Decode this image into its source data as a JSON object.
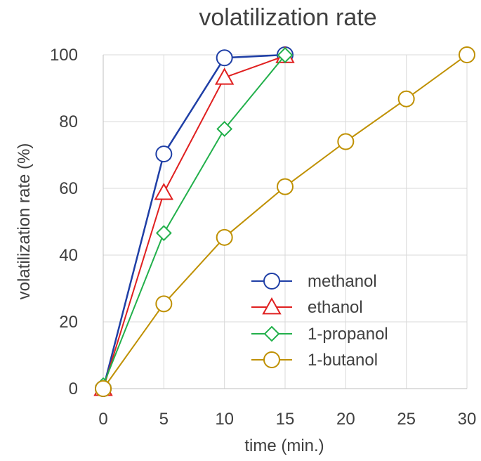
{
  "chart_data": {
    "type": "line",
    "title": "volatilization rate",
    "xlabel": "time (min.)",
    "ylabel": "volatilization rate (%)",
    "xlim": [
      0,
      30
    ],
    "ylim": [
      0,
      100
    ],
    "xticks": [
      0,
      5,
      10,
      15,
      20,
      25,
      30
    ],
    "yticks": [
      0,
      20,
      40,
      60,
      80,
      100
    ],
    "grid": true,
    "legend_position": "bottom-right",
    "series": [
      {
        "name": "methanol",
        "color": "#1f3fa6",
        "marker": "circle",
        "x": [
          0,
          5,
          10,
          15
        ],
        "y": [
          0,
          70.3,
          99.1,
          100
        ]
      },
      {
        "name": "ethanol",
        "color": "#e02020",
        "marker": "triangle",
        "x": [
          0,
          5,
          10,
          15
        ],
        "y": [
          0,
          58.7,
          93.2,
          99.7
        ]
      },
      {
        "name": "1-propanol",
        "color": "#22b04b",
        "marker": "diamond",
        "x": [
          0,
          5,
          10,
          15
        ],
        "y": [
          1.0,
          46.6,
          77.8,
          99.9
        ]
      },
      {
        "name": "1-butanol",
        "color": "#bf9000",
        "marker": "circle",
        "x": [
          0,
          5,
          10,
          15,
          20,
          25,
          30
        ],
        "y": [
          0,
          25.4,
          45.3,
          60.5,
          74.0,
          86.8,
          100
        ]
      }
    ]
  }
}
